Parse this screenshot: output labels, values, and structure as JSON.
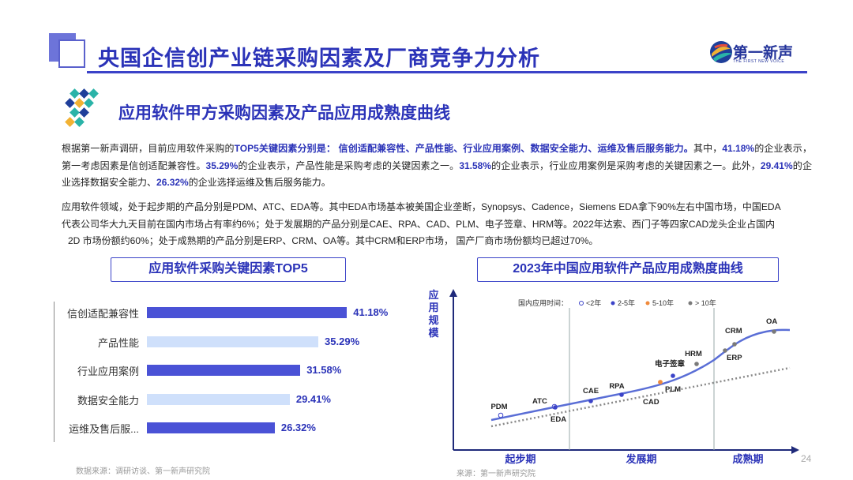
{
  "header": {
    "title": "央国企信创产业链采购因素及厂商竞争力分析",
    "logo_text": "第一新声",
    "logo_sub": "THE FIRST NEW VOICE"
  },
  "section": {
    "title": "应用软件甲方采购因素及产品应用成熟度曲线"
  },
  "para1": {
    "s1": "根据第一新声调研，目前应用软件采购的",
    "b1": "TOP5关键因素分别是：",
    "s2": " ",
    "b2": "信创适配兼容性、产品性能、行业应用案例、数据安全能力、运维及售后服务能力。",
    "s3": "其中，",
    "b3": "41.18%",
    "s4": "的企业表示，第一考虑因素是信创适配兼容性。",
    "b4": "35.29%",
    "s5": "的企业表示，产品性能是采购考虑的关键因素之一。",
    "b5": "31.58%",
    "s6": "的企业表示，行业应用案例是采购考虑的关键因素之一。此外，",
    "b6": "29.41%",
    "s7": "的企业选择数据安全能力、",
    "b7": "26.32%",
    "s8": "的企业选择运维及售后服务能力。"
  },
  "para2": {
    "line1": "应用软件领域，处于起步期的产品分别是PDM、ATC、EDA等。其中EDA市场基本被美国企业垄断，Synopsys、Cadence，Siemens EDA拿下90%左右中国市场，中国EDA",
    "line2": "代表公司华大九天目前在国内市场占有率约6%；处于发展期的产品分别是CAE、RPA、CAD、PLM、电子签章、HRM等。2022年达索、西门子等四家CAD龙头企业占国内",
    "line3": "2D 市场份额约60%；处于成熟期的产品分别是ERP、CRM、OA等。其中CRM和ERP市场，   国产厂商市场份额均已超过70%。"
  },
  "left_box_title": "应用软件采购关键因素TOP5",
  "right_box_title": "2023年中国应用软件产品应用成熟度曲线",
  "colors": {
    "accent": "#3b43c8",
    "bar_dark": "#4a52d6",
    "bar_light": "#cfe0fb",
    "curve": "#5a6ed6",
    "dots_gray": "#7a7a7a",
    "dots_orange": "#f08a3c"
  },
  "chart_data": [
    {
      "type": "bar",
      "orientation": "horizontal",
      "title": "应用软件采购关键因素TOP5",
      "categories": [
        "信创适配兼容性",
        "产品性能",
        "行业应用案例",
        "数据安全能力",
        "运维及售后服..."
      ],
      "values": [
        41.18,
        35.29,
        31.58,
        29.41,
        26.32
      ],
      "value_labels": [
        "41.18%",
        "35.29%",
        "31.58%",
        "29.41%",
        "26.32%"
      ],
      "unit": "%",
      "xlim": [
        0,
        45
      ]
    },
    {
      "type": "line",
      "title": "2023年中国应用软件产品应用成熟度曲线",
      "ylabel": "应用规模",
      "phases": [
        "起步期",
        "发展期",
        "成熟期"
      ],
      "legend": {
        "title": "国内应用时间：",
        "items": [
          "<2年",
          "2-5年",
          "5-10年",
          "> 10年"
        ],
        "placement": "top"
      },
      "points": [
        {
          "label": "PDM",
          "phase": "起步期",
          "time": "<2年"
        },
        {
          "label": "ATC",
          "phase": "起步期",
          "time": "<2年"
        },
        {
          "label": "EDA",
          "phase": "起步期",
          "time": "2-5年"
        },
        {
          "label": "CAE",
          "phase": "发展期",
          "time": "2-5年"
        },
        {
          "label": "RPA",
          "phase": "发展期",
          "time": "2-5年"
        },
        {
          "label": "CAD",
          "phase": "发展期",
          "time": "5-10年"
        },
        {
          "label": "PLM",
          "phase": "发展期",
          "time": "5-10年"
        },
        {
          "label": "电子签章",
          "phase": "发展期",
          "time": "2-5年"
        },
        {
          "label": "HRM",
          "phase": "发展期",
          "time": "> 10年"
        },
        {
          "label": "ERP",
          "phase": "成熟期",
          "time": "> 10年"
        },
        {
          "label": "CRM",
          "phase": "成熟期",
          "time": "> 10年"
        },
        {
          "label": "OA",
          "phase": "成熟期",
          "time": "> 10年"
        }
      ]
    }
  ],
  "sources": {
    "left": "数据来源：调研访谈、第一新声研究院",
    "right": "来源：第一新声研究院"
  },
  "page_number": "24"
}
